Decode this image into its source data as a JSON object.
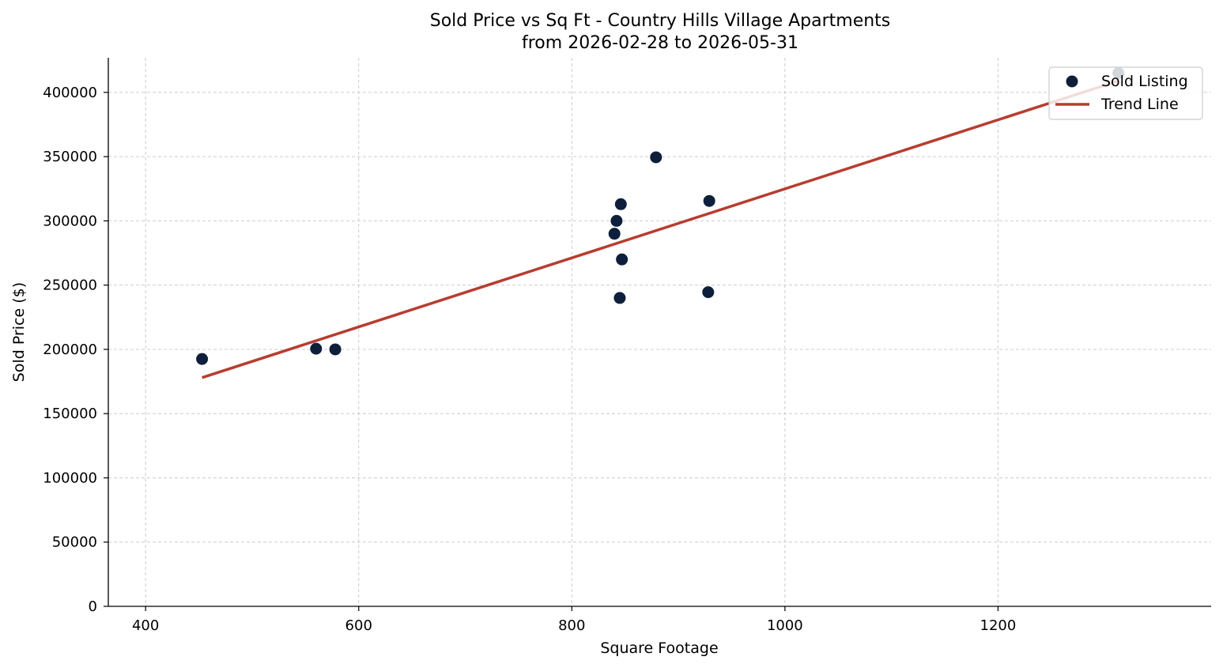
{
  "chart_data": {
    "type": "scatter",
    "title": "Sold Price vs Sq Ft - Country Hills Village Apartments",
    "subtitle": "from 2026-02-28 to 2026-05-31",
    "xlabel": "Square Footage",
    "ylabel": "Sold Price ($)",
    "xlim": [
      365,
      1400
    ],
    "ylim": [
      0,
      427000
    ],
    "x_ticks": [
      400,
      600,
      800,
      1000,
      1200
    ],
    "y_ticks": [
      0,
      50000,
      100000,
      150000,
      200000,
      250000,
      300000,
      350000,
      400000
    ],
    "grid": true,
    "legend_position": "top-right",
    "series": [
      {
        "name": "Sold Listing",
        "kind": "scatter",
        "color": "#0d1f3a",
        "points": [
          {
            "x": 453,
            "y": 192500
          },
          {
            "x": 560,
            "y": 200500
          },
          {
            "x": 578,
            "y": 200000
          },
          {
            "x": 840,
            "y": 290000
          },
          {
            "x": 842,
            "y": 300000
          },
          {
            "x": 845,
            "y": 240000
          },
          {
            "x": 846,
            "y": 313000
          },
          {
            "x": 847,
            "y": 270000
          },
          {
            "x": 879,
            "y": 349500
          },
          {
            "x": 928,
            "y": 244500
          },
          {
            "x": 929,
            "y": 315500
          },
          {
            "x": 1313,
            "y": 415000
          }
        ]
      },
      {
        "name": "Trend Line",
        "kind": "line",
        "color": "#b73d2f",
        "points": [
          {
            "x": 453,
            "y": 178000
          },
          {
            "x": 1313,
            "y": 409000
          }
        ]
      }
    ]
  }
}
